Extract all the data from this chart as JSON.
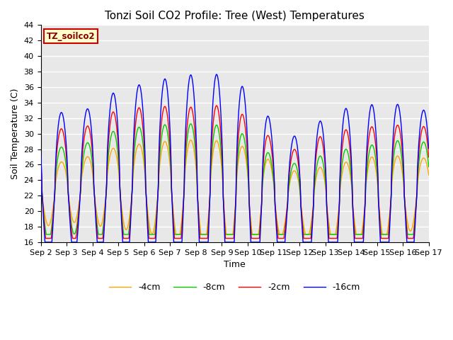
{
  "title": "Tonzi Soil CO2 Profile: Tree (West) Temperatures",
  "ylabel": "Soil Temperature (C)",
  "xlabel": "Time",
  "ylim": [
    16,
    44
  ],
  "legend_title": "TZ_soilco2",
  "legend_entries": [
    "-2cm",
    "-4cm",
    "-8cm",
    "-16cm"
  ],
  "line_colors": [
    "#ff0000",
    "#ffa500",
    "#00cc00",
    "#0000ff"
  ],
  "background_color": "#e8e8e8",
  "grid_color": "#ffffff",
  "title_fontsize": 11,
  "axis_label_fontsize": 9,
  "tick_fontsize": 8,
  "x_tick_labels": [
    "Sep 2",
    "Sep 3",
    "Sep 4",
    "Sep 5",
    "Sep 6",
    "Sep 7",
    "Sep 8",
    "Sep 9",
    "Sep 10",
    "Sep 11",
    "Sep 12",
    "Sep 13",
    "Sep 14",
    "Sep 15",
    "Sep 16",
    "Sep 17"
  ]
}
